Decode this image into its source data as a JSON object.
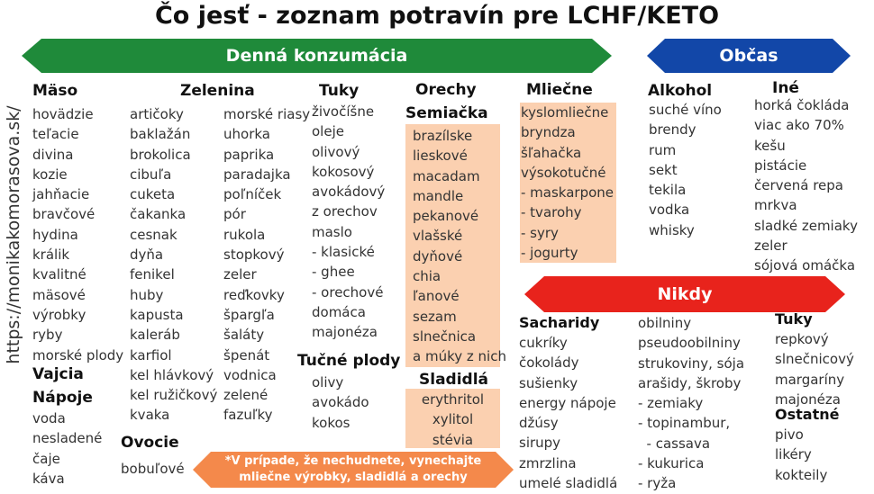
{
  "title": "Čo jesť - zoznam potravín pre LCHF/KETO",
  "url": "https://monikakomorasova.sk/",
  "banners": {
    "daily": "Denná konzumácia",
    "sometimes": "Občas",
    "never": "Nikdy"
  },
  "colors": {
    "daily": "#1f8a3a",
    "sometimes": "#1247a8",
    "never": "#e8231c",
    "note": "#f4894b",
    "highlight": "#fbd0b0"
  },
  "maso": {
    "heading": "Mäso",
    "items": [
      "hovädzie",
      "teľacie",
      "divina",
      "kozie",
      "jahňacie",
      "bravčové",
      "hydina",
      "králik",
      "kvalitné",
      "mäsové",
      "výrobky",
      "ryby",
      "morské plody"
    ]
  },
  "vajcia": {
    "heading": "Vajcia"
  },
  "napoje": {
    "heading": "Nápoje",
    "items": [
      "voda",
      "nesladené",
      "čaje",
      "káva"
    ]
  },
  "zelenina": {
    "heading": "Zelenina",
    "col1": [
      "artičoky",
      "baklažán",
      "brokolica",
      "cibuľa",
      "cuketa",
      "čakanka",
      "cesnak",
      "dyňa",
      "fenikel",
      "huby",
      "kapusta",
      "kaleráb",
      "karfiol",
      "kel hlávkový",
      "kel ružičkový",
      "kvaka"
    ],
    "col2": [
      "morské riasy",
      "uhorka",
      "paprika",
      "paradajka",
      "poľníček",
      "pór",
      "rukola",
      "stopkový",
      "zeler",
      "reďkovky",
      "špargľa",
      "šaláty",
      "špenát",
      "vodnica",
      "zelené",
      "fazuľky"
    ]
  },
  "ovocie": {
    "heading": "Ovocie",
    "items": [
      "bobuľové"
    ]
  },
  "tuky": {
    "heading": "Tuky",
    "items": [
      "živočíšne",
      "oleje",
      "olivový",
      "kokosový",
      "avokádový",
      "z orechov",
      "maslo",
      "- klasické",
      "- ghee",
      "- orechové",
      "domáca",
      "majonéza"
    ]
  },
  "tucne_plody": {
    "heading": "Tučné plody",
    "items": [
      "olivy",
      "avokádo",
      "kokos"
    ]
  },
  "orechy": {
    "heading1": "Orechy",
    "heading2": "Semiačka",
    "items": [
      "brazílske",
      "lieskové",
      "macadam",
      "mandle",
      "pekanové",
      "vlašské",
      "dyňové",
      "chia",
      "ľanové",
      "sezam",
      "slnečnica",
      "a múky z nich"
    ]
  },
  "sladidla": {
    "heading": "Sladidlá",
    "items": [
      "erythritol",
      "xylitol",
      "stévia"
    ]
  },
  "mliecne": {
    "heading": "Mliečne",
    "items": [
      "kyslomliečne",
      "bryndza",
      "šľahačka",
      "výsokotučné",
      "- maskarpone",
      "- tvarohy",
      "- syry",
      "- jogurty"
    ]
  },
  "note": {
    "line1": "*V prípade, že nechudnete, vynechajte",
    "line2": "mliečne výrobky, sladidlá a orechy"
  },
  "alkohol": {
    "heading": "Alkohol",
    "items": [
      "suché víno",
      "brendy",
      "rum",
      "sekt",
      "tekila",
      "vodka",
      "whisky"
    ]
  },
  "ine": {
    "heading": "Iné",
    "items": [
      "horká čokláda",
      "viac ako 70%",
      "kešu",
      "pistácie",
      "červená repa",
      "mrkva",
      "sladké zemiaky",
      "zeler",
      "sójová omáčka"
    ]
  },
  "sacharidy": {
    "heading": "Sacharidy",
    "items": [
      "cukríky",
      "čokolády",
      "sušienky",
      "energy nápoje",
      "džúsy",
      "sirupy",
      "zmrzlina",
      "umelé sladidlá"
    ]
  },
  "obilniny": {
    "items": [
      "obilniny",
      "pseudoobilniny",
      "strukoviny, sója",
      "arašidy, škroby",
      "- zemiaky",
      "- topinambur,",
      "  - cassava",
      "- kukurica",
      "- ryža"
    ]
  },
  "nikdy_tuky": {
    "heading": "Tuky",
    "items": [
      "repkový",
      "slnečnicový",
      "margaríny",
      "majonéza"
    ]
  },
  "ostatne": {
    "heading": "Ostatné",
    "items": [
      "pivo",
      "likéry",
      "kokteily"
    ]
  }
}
